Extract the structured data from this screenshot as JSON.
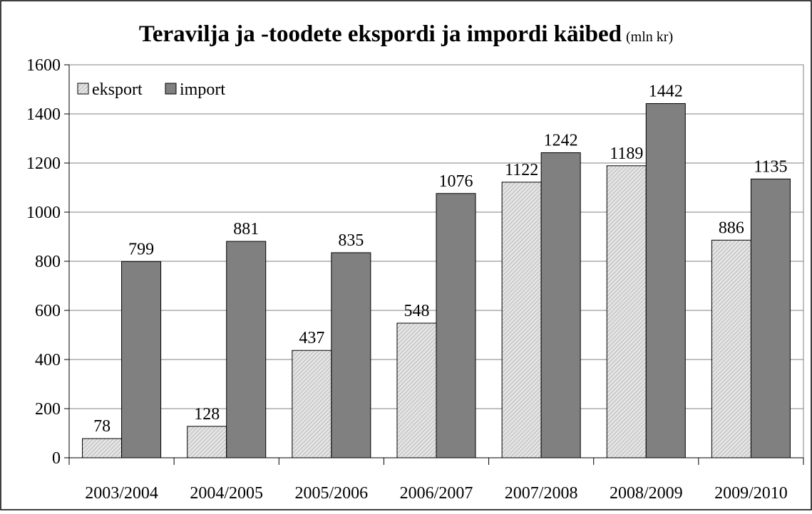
{
  "chart_data": {
    "type": "bar",
    "title": "Teravilja ja -toodete ekspordi ja impordi käibed",
    "subtitle": "(mln kr)",
    "categories": [
      "2003/2004",
      "2004/2005",
      "2005/2006",
      "2006/2007",
      "2007/2008",
      "2008/2009",
      "2009/2010"
    ],
    "series": [
      {
        "name": "eksport",
        "color": "#d4d4d4",
        "values": [
          78,
          128,
          437,
          548,
          1122,
          1189,
          886
        ]
      },
      {
        "name": "import",
        "color": "#808080",
        "values": [
          799,
          881,
          835,
          1076,
          1242,
          1442,
          1135
        ]
      }
    ],
    "ylim": [
      0,
      1600
    ],
    "yticks": [
      0,
      200,
      400,
      600,
      800,
      1000,
      1200,
      1400,
      1600
    ],
    "grid": true,
    "legend": "top-left"
  }
}
